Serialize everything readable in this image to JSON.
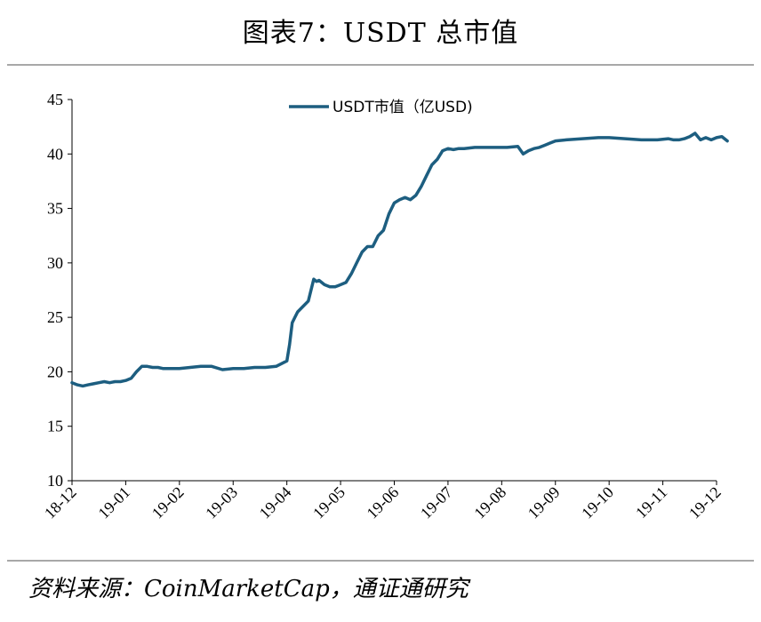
{
  "title": "图表7：USDT 总市值",
  "source": "资料来源：CoinMarketCap，通证通研究",
  "chart_data": {
    "type": "line",
    "title": "图表7：USDT 总市值",
    "xlabel": "",
    "ylabel": "",
    "ylim": [
      10,
      45
    ],
    "yticks": [
      10,
      15,
      20,
      25,
      30,
      35,
      40,
      45
    ],
    "xticks": [
      "18-12",
      "19-01",
      "19-02",
      "19-03",
      "19-04",
      "19-05",
      "19-06",
      "19-07",
      "19-08",
      "19-09",
      "19-10",
      "19-11",
      "19-12"
    ],
    "grid": false,
    "legend": "top-center",
    "series": [
      {
        "name": "USDT市值（亿USD)",
        "color": "#1d5e80",
        "x": [
          0,
          0.1,
          0.2,
          0.3,
          0.4,
          0.5,
          0.6,
          0.7,
          0.8,
          0.9,
          1.0,
          1.1,
          1.2,
          1.3,
          1.4,
          1.5,
          1.6,
          1.7,
          1.8,
          1.9,
          2.0,
          2.2,
          2.4,
          2.6,
          2.8,
          3.0,
          3.2,
          3.4,
          3.6,
          3.8,
          4.0,
          4.05,
          4.1,
          4.15,
          4.2,
          4.3,
          4.4,
          4.5,
          4.55,
          4.6,
          4.7,
          4.8,
          4.9,
          5.0,
          5.1,
          5.2,
          5.3,
          5.4,
          5.5,
          5.6,
          5.7,
          5.8,
          5.9,
          6.0,
          6.1,
          6.2,
          6.3,
          6.4,
          6.5,
          6.6,
          6.7,
          6.8,
          6.9,
          7.0,
          7.1,
          7.2,
          7.3,
          7.5,
          7.7,
          7.9,
          8.1,
          8.3,
          8.4,
          8.5,
          8.6,
          8.7,
          8.8,
          8.9,
          9.0,
          9.2,
          9.5,
          9.8,
          10.0,
          10.3,
          10.6,
          10.9,
          11.1,
          11.2,
          11.3,
          11.4,
          11.5,
          11.6,
          11.7,
          11.8,
          11.9,
          12.0,
          12.1,
          12.2
        ],
        "values": [
          19.0,
          18.8,
          18.7,
          18.8,
          18.9,
          19.0,
          19.1,
          19.0,
          19.1,
          19.1,
          19.2,
          19.4,
          20.0,
          20.5,
          20.5,
          20.4,
          20.4,
          20.3,
          20.3,
          20.3,
          20.3,
          20.4,
          20.5,
          20.5,
          20.2,
          20.3,
          20.3,
          20.4,
          20.4,
          20.5,
          21.0,
          22.5,
          24.5,
          25.0,
          25.5,
          26.0,
          26.5,
          28.5,
          28.3,
          28.4,
          28.0,
          27.8,
          27.8,
          28.0,
          28.2,
          29.0,
          30.0,
          31.0,
          31.5,
          31.5,
          32.5,
          33.0,
          34.5,
          35.5,
          35.8,
          36.0,
          35.8,
          36.2,
          37.0,
          38.0,
          39.0,
          39.5,
          40.3,
          40.5,
          40.4,
          40.5,
          40.5,
          40.6,
          40.6,
          40.6,
          40.6,
          40.7,
          40.0,
          40.3,
          40.5,
          40.6,
          40.8,
          41.0,
          41.2,
          41.3,
          41.4,
          41.5,
          41.5,
          41.4,
          41.3,
          41.3,
          41.4,
          41.3,
          41.3,
          41.4,
          41.6,
          41.9,
          41.3,
          41.5,
          41.3,
          41.5,
          41.6,
          41.2
        ]
      }
    ]
  }
}
